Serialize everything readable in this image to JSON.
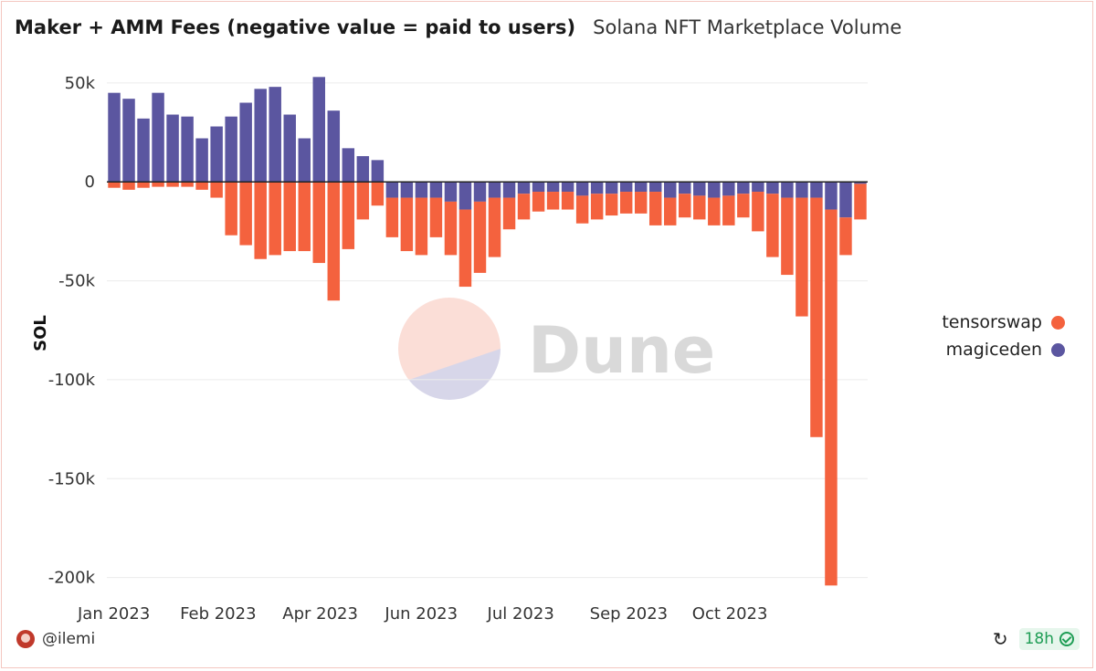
{
  "header": {
    "title": "Maker + AMM Fees (negative value = paid to users)",
    "subtitle": "Solana NFT Marketplace Volume"
  },
  "legend": {
    "items": [
      {
        "label": "tensorswap",
        "color": "#f4623e"
      },
      {
        "label": "magiceden",
        "color": "#5b56a0"
      }
    ]
  },
  "footer": {
    "author": "@ilemi",
    "refresh_icon": "refresh-icon",
    "age": "18h",
    "status_icon": "check-circle-icon"
  },
  "watermark": {
    "text": "Dune"
  },
  "chart_data": {
    "type": "bar",
    "stacked": true,
    "ylabel": "SOL",
    "ylim": [
      -208000,
      55000
    ],
    "yticks": [
      {
        "value": 50000,
        "label": "50k"
      },
      {
        "value": 0,
        "label": "0"
      },
      {
        "value": -50000,
        "label": "-50k"
      },
      {
        "value": -100000,
        "label": "-100k"
      },
      {
        "value": -150000,
        "label": "-150k"
      },
      {
        "value": -200000,
        "label": "-200k"
      }
    ],
    "xticks": [
      {
        "index": 0,
        "label": "Jan 2023"
      },
      {
        "index": 7,
        "label": "Feb 2023"
      },
      {
        "index": 14,
        "label": "Apr 2023"
      },
      {
        "index": 21,
        "label": "Jun 2023"
      },
      {
        "index": 28,
        "label": "Jul 2023"
      },
      {
        "index": 35,
        "label": "Sep 2023"
      },
      {
        "index": 42,
        "label": "Oct 2023"
      }
    ],
    "grid": true,
    "legend_position": "right",
    "series": [
      {
        "name": "magiceden",
        "color": "#5b56a0",
        "values": [
          45000,
          42000,
          32000,
          45000,
          34000,
          33000,
          22000,
          28000,
          33000,
          40000,
          47000,
          48000,
          34000,
          22000,
          53000,
          36000,
          17000,
          13000,
          11000,
          -8000,
          -8000,
          -8000,
          -8000,
          -10000,
          -14000,
          -10000,
          -8000,
          -8000,
          -6000,
          -5000,
          -5000,
          -5000,
          -7000,
          -6000,
          -6000,
          -5000,
          -5000,
          -5000,
          -8000,
          -6000,
          -7000,
          -8000,
          -7000,
          -6000,
          -5000,
          -6000,
          -8000,
          -8000,
          -8000,
          -14000,
          -18000,
          -1000
        ]
      },
      {
        "name": "tensorswap",
        "color": "#f4623e",
        "values": [
          -3000,
          -4000,
          -3000,
          -2500,
          -2500,
          -2500,
          -4000,
          -8000,
          -27000,
          -32000,
          -39000,
          -37000,
          -35000,
          -35000,
          -41000,
          -60000,
          -34000,
          -19000,
          -12000,
          -20000,
          -27000,
          -29000,
          -20000,
          -27000,
          -39000,
          -36000,
          -30000,
          -16000,
          -13000,
          -10000,
          -9000,
          -9000,
          -14000,
          -13000,
          -11000,
          -11000,
          -11000,
          -17000,
          -14000,
          -12000,
          -12000,
          -14000,
          -15000,
          -12000,
          -20000,
          -32000,
          -39000,
          -60000,
          -121000,
          -190000,
          -19000,
          -18000
        ]
      }
    ]
  }
}
